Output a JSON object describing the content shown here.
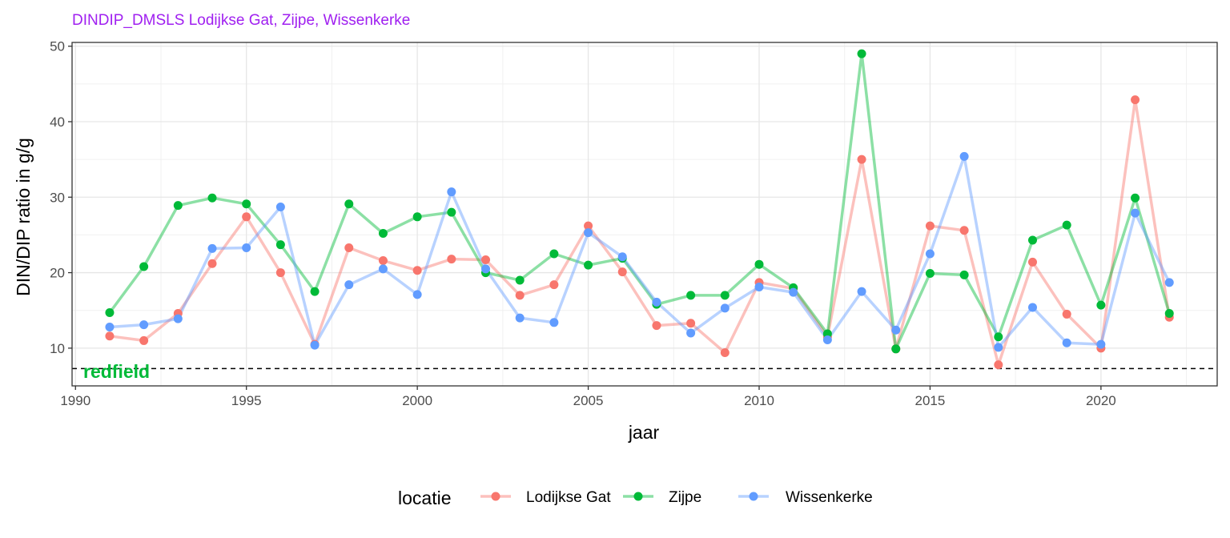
{
  "chart_data": {
    "type": "line",
    "title": "DINDIP_DMSLS Lodijkse Gat, Zijpe, Wissenkerke",
    "xlabel": "jaar",
    "ylabel": "DIN/DIP ratio in g/g",
    "xlim": [
      1989.9,
      2023.4
    ],
    "ylim": [
      5,
      50.5
    ],
    "x_ticks": [
      1990,
      1995,
      2000,
      2005,
      2010,
      2015,
      2020
    ],
    "y_ticks": [
      10,
      20,
      30,
      40,
      50
    ],
    "grid": true,
    "legend_title": "locatie",
    "legend_position": "bottom",
    "reference_line": {
      "y": 7.3,
      "style": "dashed",
      "label": "redfield",
      "label_color": "#00BA38"
    },
    "title_color": "#A020F0",
    "series": [
      {
        "name": "Lodijkse Gat",
        "color": "#F8766D",
        "x": [
          1991,
          1992,
          1993,
          1994,
          1995,
          1996,
          1997,
          1998,
          1999,
          2000,
          2001,
          2002,
          2003,
          2004,
          2005,
          2006,
          2007,
          2008,
          2009,
          2010,
          2011,
          2012,
          2013,
          2014,
          2015,
          2016,
          2017,
          2018,
          2019,
          2020,
          2021,
          2022
        ],
        "values": [
          11.6,
          11.0,
          14.6,
          21.2,
          27.4,
          20.0,
          10.5,
          23.3,
          21.6,
          20.3,
          21.8,
          21.7,
          17.0,
          18.4,
          26.2,
          20.1,
          13.0,
          13.3,
          9.4,
          18.7,
          17.9,
          11.5,
          35.0,
          9.9,
          26.2,
          25.6,
          7.8,
          21.4,
          14.5,
          10.0,
          42.9,
          14.1
        ]
      },
      {
        "name": "Zijpe",
        "color": "#00BA38",
        "x": [
          1991,
          1992,
          1993,
          1994,
          1995,
          1996,
          1997,
          1998,
          1999,
          2000,
          2001,
          2002,
          2003,
          2004,
          2005,
          2006,
          2007,
          2008,
          2009,
          2010,
          2011,
          2012,
          2013,
          2014,
          2015,
          2016,
          2017,
          2018,
          2019,
          2020,
          2021,
          2022
        ],
        "values": [
          14.7,
          20.8,
          28.9,
          29.9,
          29.1,
          23.7,
          17.5,
          29.1,
          25.2,
          27.4,
          28.0,
          20.0,
          19.0,
          22.5,
          21.0,
          21.9,
          15.8,
          17.0,
          17.0,
          21.1,
          18.0,
          11.9,
          49.0,
          9.9,
          19.9,
          19.7,
          11.5,
          24.3,
          26.3,
          15.7,
          29.9,
          14.6
        ]
      },
      {
        "name": "Wissenkerke",
        "color": "#619CFF",
        "x": [
          1991,
          1992,
          1993,
          1994,
          1995,
          1996,
          1997,
          1998,
          1999,
          2000,
          2001,
          2002,
          2003,
          2004,
          2005,
          2006,
          2007,
          2008,
          2009,
          2010,
          2011,
          2012,
          2013,
          2014,
          2015,
          2016,
          2017,
          2018,
          2019,
          2020,
          2021,
          2022
        ],
        "values": [
          12.8,
          13.1,
          13.9,
          23.2,
          23.3,
          28.7,
          10.4,
          18.4,
          20.5,
          17.1,
          30.7,
          20.5,
          14.0,
          13.4,
          25.3,
          22.1,
          16.1,
          12.0,
          15.3,
          18.1,
          17.4,
          11.1,
          17.5,
          12.4,
          22.5,
          35.4,
          10.1,
          15.4,
          10.7,
          10.5,
          27.9,
          18.7
        ]
      }
    ]
  }
}
